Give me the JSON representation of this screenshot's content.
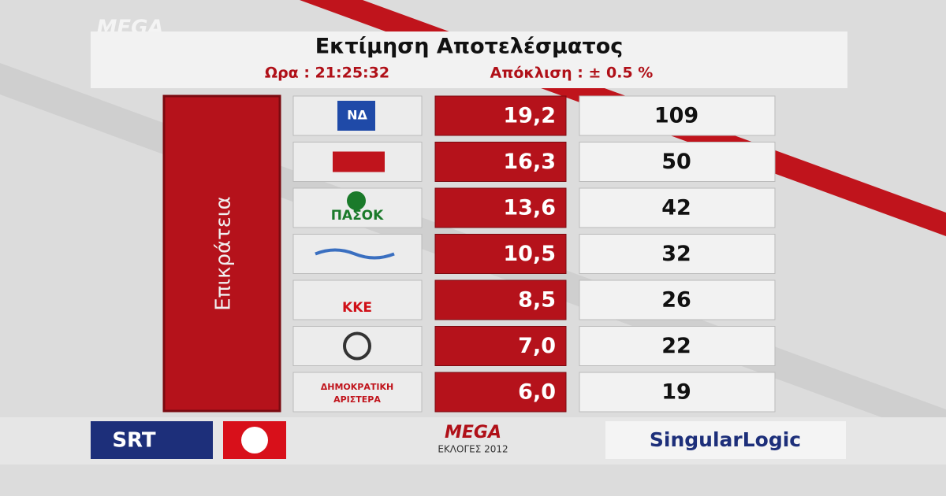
{
  "channel_logo": "MEGA",
  "header": {
    "title": "Εκτίμηση Αποτελέσματος",
    "time": "Ωρα : 21:25:32",
    "margin": "Απόκλιση  :  ± 0.5 %"
  },
  "region": "Επικράτεια",
  "table": {
    "rows": [
      {
        "logo_text": [
          "ΝΔ"
        ],
        "percent": "19,2",
        "seats": 109
      },
      {
        "percent": "16,3",
        "seats": 50
      },
      {
        "logo_text": [
          "ΠΑΣΟΚ"
        ],
        "percent": "13,6",
        "seats": 42
      },
      {
        "percent": "10,5",
        "seats": 32
      },
      {
        "logo_text": [
          "ΚΚΕ"
        ],
        "percent": "8,5",
        "seats": 26
      },
      {
        "percent": "7,0",
        "seats": 22
      },
      {
        "logo_text": [
          "ΔΗΜΟΚΡΑΤΙΚΗ",
          "ΑΡΙΣΤΕΡΑ"
        ],
        "percent": "6,0",
        "seats": 19
      }
    ]
  },
  "footer": {
    "srt": "SRT",
    "mega": "MEGA",
    "elections": "ΕΚΛΟΓΕΣ 2012",
    "sponsor": "SingularLogic"
  }
}
